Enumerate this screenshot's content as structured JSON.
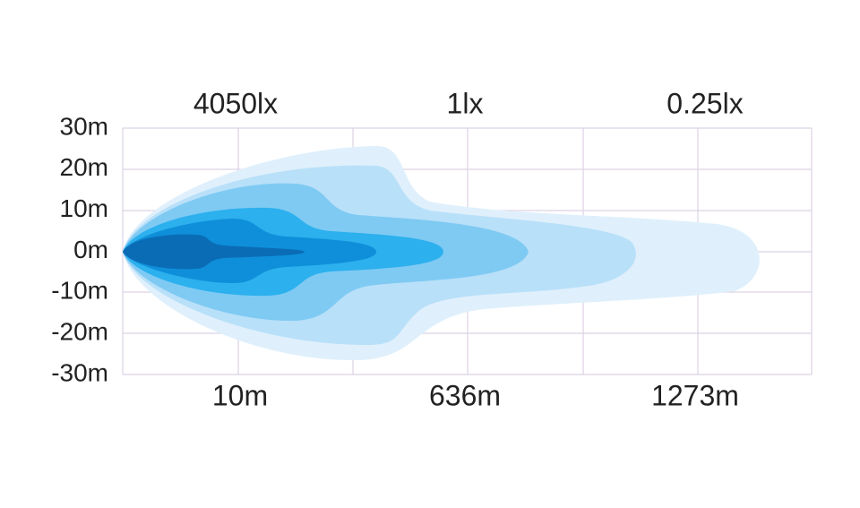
{
  "lux_labels": [
    "4050lx",
    "1lx",
    "0.25lx"
  ],
  "y_labels": [
    "30m",
    "20m",
    "10m",
    "0m",
    "-10m",
    "-20m",
    "-30m"
  ],
  "distance_labels": [
    "10m",
    "636m",
    "1273m"
  ]
}
